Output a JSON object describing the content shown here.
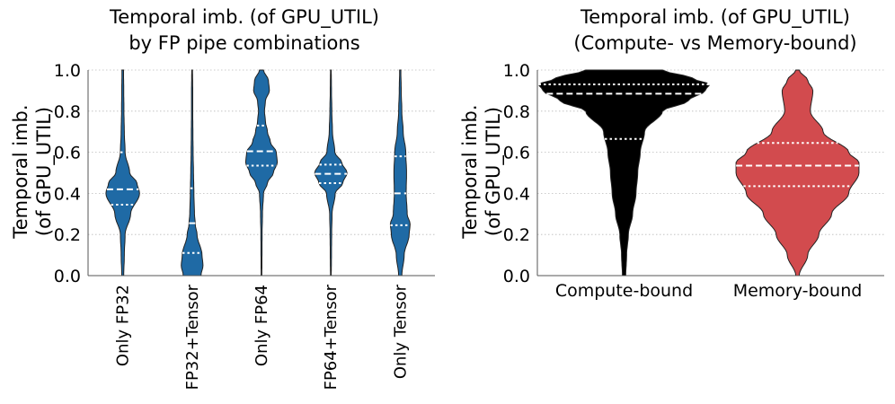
{
  "chart_data": [
    {
      "type": "violin",
      "title_lines": [
        "Temporal imb. (of GPU_UTIL)",
        "by FP pipe combinations"
      ],
      "ylabel_lines": [
        "Temporal imb.",
        "(of GPU_UTIL)"
      ],
      "ylim": [
        0,
        1
      ],
      "yticks": [
        "0.0",
        "0.2",
        "0.4",
        "0.6",
        "0.8",
        "1.0"
      ],
      "grid": true,
      "categories": [
        "Only FP32",
        "FP32+Tensor",
        "Only FP64",
        "FP64+Tensor",
        "Only Tensor"
      ],
      "series": [
        {
          "color": "#1f6aa5",
          "quartiles": [
            0.345,
            0.42,
            0.6
          ],
          "density": [
            [
              0.0,
              0.05
            ],
            [
              0.1,
              0.08
            ],
            [
              0.2,
              0.12
            ],
            [
              0.3,
              0.4
            ],
            [
              0.4,
              0.85
            ],
            [
              0.45,
              0.72
            ],
            [
              0.5,
              0.35
            ],
            [
              0.6,
              0.12
            ],
            [
              0.7,
              0.08
            ],
            [
              0.8,
              0.06
            ],
            [
              0.9,
              0.05
            ],
            [
              1.0,
              0.04
            ]
          ]
        },
        {
          "color": "#1f6aa5",
          "quartiles": [
            0.11,
            0.255,
            0.425
          ],
          "density": [
            [
              0.0,
              0.45
            ],
            [
              0.05,
              0.55
            ],
            [
              0.1,
              0.5
            ],
            [
              0.2,
              0.25
            ],
            [
              0.25,
              0.16
            ],
            [
              0.3,
              0.12
            ],
            [
              0.4,
              0.09
            ],
            [
              0.5,
              0.07
            ],
            [
              0.6,
              0.05
            ],
            [
              0.7,
              0.04
            ],
            [
              0.8,
              0.03
            ],
            [
              0.9,
              0.03
            ],
            [
              1.0,
              0.02
            ]
          ]
        },
        {
          "color": "#1f6aa5",
          "quartiles": [
            0.535,
            0.605,
            0.73
          ],
          "density": [
            [
              0.0,
              0.02
            ],
            [
              0.2,
              0.03
            ],
            [
              0.3,
              0.05
            ],
            [
              0.4,
              0.1
            ],
            [
              0.45,
              0.3
            ],
            [
              0.5,
              0.6
            ],
            [
              0.55,
              0.8
            ],
            [
              0.6,
              0.75
            ],
            [
              0.65,
              0.45
            ],
            [
              0.7,
              0.3
            ],
            [
              0.75,
              0.2
            ],
            [
              0.8,
              0.15
            ],
            [
              0.85,
              0.2
            ],
            [
              0.9,
              0.4
            ],
            [
              0.95,
              0.35
            ],
            [
              1.0,
              0.1
            ]
          ]
        },
        {
          "color": "#1f6aa5",
          "quartiles": [
            0.45,
            0.495,
            0.54
          ],
          "density": [
            [
              0.0,
              0.02
            ],
            [
              0.1,
              0.03
            ],
            [
              0.2,
              0.04
            ],
            [
              0.3,
              0.06
            ],
            [
              0.4,
              0.22
            ],
            [
              0.45,
              0.6
            ],
            [
              0.5,
              0.82
            ],
            [
              0.55,
              0.55
            ],
            [
              0.6,
              0.2
            ],
            [
              0.7,
              0.08
            ],
            [
              0.8,
              0.05
            ],
            [
              0.9,
              0.03
            ],
            [
              1.0,
              0.02
            ]
          ]
        },
        {
          "color": "#1f6aa5",
          "quartiles": [
            0.245,
            0.4,
            0.58
          ],
          "density": [
            [
              0.0,
              0.08
            ],
            [
              0.1,
              0.2
            ],
            [
              0.2,
              0.45
            ],
            [
              0.25,
              0.5
            ],
            [
              0.3,
              0.35
            ],
            [
              0.4,
              0.3
            ],
            [
              0.5,
              0.32
            ],
            [
              0.6,
              0.28
            ],
            [
              0.7,
              0.15
            ],
            [
              0.8,
              0.08
            ],
            [
              0.9,
              0.05
            ],
            [
              1.0,
              0.03
            ]
          ]
        }
      ]
    },
    {
      "type": "violin",
      "title_lines": [
        "Temporal imb. (of GPU_UTIL)",
        "(Compute- vs Memory-bound)"
      ],
      "ylabel_lines": [
        "Temporal imb.",
        "(of GPU_UTIL)"
      ],
      "ylim": [
        0,
        1
      ],
      "yticks": [
        "0.0",
        "0.2",
        "0.4",
        "0.6",
        "0.8",
        "1.0"
      ],
      "grid": true,
      "categories": [
        "Compute-bound",
        "Memory-bound"
      ],
      "series": [
        {
          "color": "#000000",
          "quartiles": [
            0.665,
            0.885,
            0.93
          ],
          "density": [
            [
              0.0,
              0.02
            ],
            [
              0.1,
              0.03
            ],
            [
              0.2,
              0.05
            ],
            [
              0.3,
              0.1
            ],
            [
              0.4,
              0.14
            ],
            [
              0.5,
              0.16
            ],
            [
              0.6,
              0.19
            ],
            [
              0.7,
              0.24
            ],
            [
              0.8,
              0.45
            ],
            [
              0.85,
              0.75
            ],
            [
              0.9,
              0.95
            ],
            [
              0.93,
              1.0
            ],
            [
              0.96,
              0.8
            ],
            [
              1.0,
              0.45
            ]
          ]
        },
        {
          "color": "#d24b4e",
          "quartiles": [
            0.435,
            0.535,
            0.645
          ],
          "density": [
            [
              0.0,
              0.02
            ],
            [
              0.1,
              0.12
            ],
            [
              0.2,
              0.25
            ],
            [
              0.3,
              0.4
            ],
            [
              0.4,
              0.6
            ],
            [
              0.5,
              0.72
            ],
            [
              0.55,
              0.72
            ],
            [
              0.6,
              0.6
            ],
            [
              0.7,
              0.3
            ],
            [
              0.8,
              0.15
            ],
            [
              0.9,
              0.18
            ],
            [
              0.95,
              0.12
            ],
            [
              1.0,
              0.02
            ]
          ]
        }
      ]
    }
  ]
}
